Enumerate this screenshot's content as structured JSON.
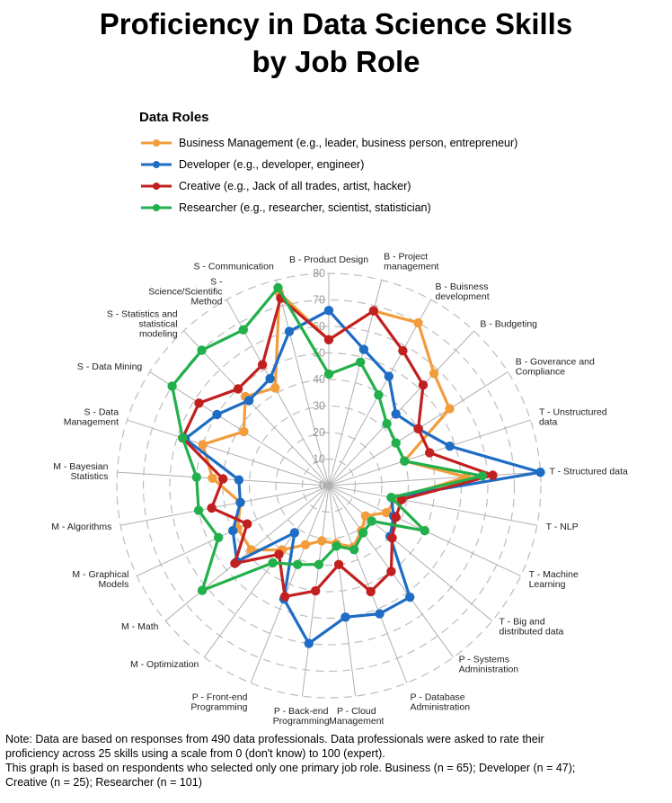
{
  "title_lines": [
    "Proficiency in Data Science Skills",
    "by Job Role"
  ],
  "legend_title": "Data Roles",
  "note_lines": [
    "Note: Data are based on responses from 490 data professionals. Data professionals were asked to rate their",
    "proficiency across 25 skills using a scale from 0 (don't know) to 100 (expert).",
    "This graph is based on respondents who selected only one primary job role. Business (n = 65); Developer (n = 47);",
    "Creative (n = 25); Researcher (n = 101)"
  ],
  "chart_data": {
    "type": "radar",
    "title": "Proficiency in Data Science Skills by Job Role",
    "rlim": [
      0,
      80
    ],
    "rticks": [
      0,
      10,
      20,
      30,
      40,
      50,
      60,
      70,
      80
    ],
    "grid": true,
    "legend_position": "top-left",
    "categories": [
      "B - Product Design",
      "B - Project management",
      "B - Buisness development",
      "B - Budgeting",
      "B - Goverance and Compliance",
      "T - Unstructured data",
      "T - Structured data",
      "T - NLP",
      "T - Machine Learning",
      "T - Big and distributed data",
      "P - Systems Administration",
      "P - Database Administration",
      "P - Cloud Management",
      "P - Back-end Programming",
      "P - Front-end Programming",
      "M - Optimization",
      "M - Math",
      "M - Graphical Models",
      "M - Algorithms",
      "M - Bayesian Statistics",
      "S - Data Management",
      "S - Data Mining",
      "S - Statistics and statistical modeling",
      "S - Science/Scientific Method",
      "S - Communication"
    ],
    "series": [
      {
        "name": "Business Management (e.g., leader, business person,  entrepreneur)",
        "color": "#f39c3c",
        "values": [
          55,
          68,
          70,
          58,
          54,
          30,
          52,
          26,
          24,
          18,
          21,
          25,
          22,
          21,
          24,
          30,
          38,
          38,
          34,
          44,
          50,
          38,
          46,
          42,
          75
        ]
      },
      {
        "name": "Developer (e.g., developer,  engineer)",
        "color": "#1f6cc4",
        "values": [
          66,
          53,
          47,
          37,
          40,
          48,
          80,
          24,
          27,
          30,
          52,
          52,
          50,
          60,
          46,
          22,
          45,
          40,
          34,
          34,
          57,
          50,
          44,
          46,
          60
        ]
      },
      {
        "name": "Creative (e.g., Jack of all trades, artist, hacker)",
        "color": "#c21f1f",
        "values": [
          55,
          68,
          58,
          52,
          40,
          40,
          62,
          28,
          28,
          31,
          40,
          43,
          30,
          40,
          45,
          32,
          46,
          34,
          45,
          40,
          58,
          58,
          50,
          52,
          73
        ]
      },
      {
        "name": "Researcher (e.g., researcher, scientist, statistician)",
        "color": "#21b04b",
        "values": [
          42,
          48,
          39,
          32,
          30,
          30,
          58,
          24,
          40,
          21,
          22,
          26,
          23,
          30,
          32,
          36,
          62,
          46,
          50,
          50,
          58,
          70,
          70,
          67,
          77
        ]
      }
    ]
  }
}
